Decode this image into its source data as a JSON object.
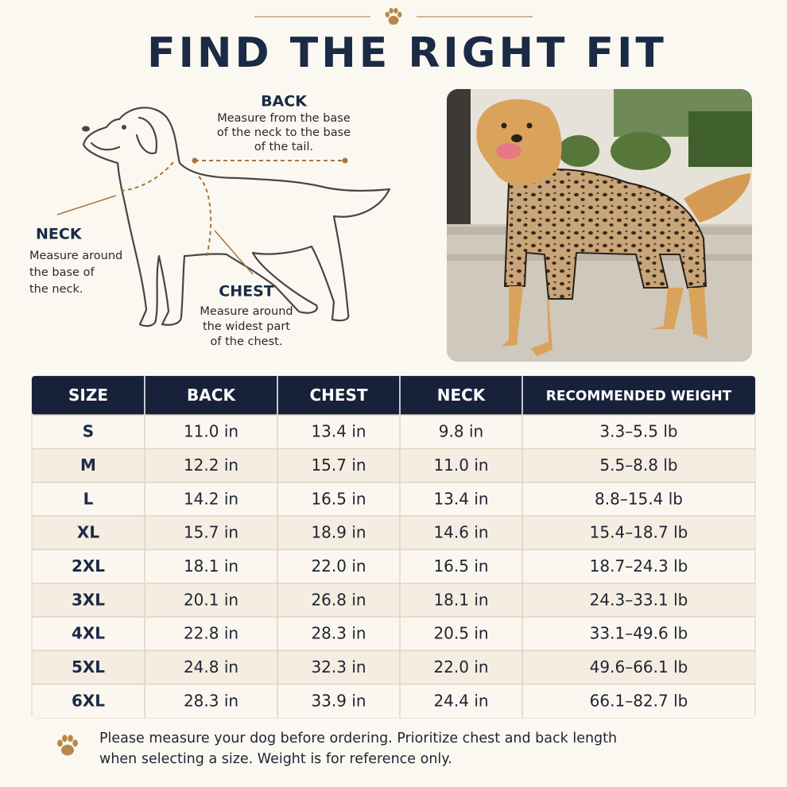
{
  "header": {
    "title": "FIND THE RIGHT FIT"
  },
  "diagram": {
    "back": {
      "label": "BACK",
      "description": [
        "Measure from the base",
        "of the neck to the base",
        "of the tail."
      ]
    },
    "neck": {
      "label": "NECK",
      "description": [
        "Measure around",
        "the base of",
        "the neck."
      ]
    },
    "chest": {
      "label": "CHEST",
      "description": [
        "Measure around",
        "the widest part",
        "of the chest."
      ]
    }
  },
  "table": {
    "columns": [
      "SIZE",
      "BACK",
      "CHEST",
      "NECK",
      "RECOMMENDED WEIGHT"
    ],
    "rows": [
      [
        "S",
        "11.0 in",
        "13.4 in",
        "9.8 in",
        "3.3–5.5 lb"
      ],
      [
        "M",
        "12.2 in",
        "15.7 in",
        "11.0 in",
        "5.5–8.8 lb"
      ],
      [
        "L",
        "14.2 in",
        "16.5 in",
        "13.4 in",
        "8.8–15.4 lb"
      ],
      [
        "XL",
        "15.7 in",
        "18.9 in",
        "14.6 in",
        "15.4–18.7 lb"
      ],
      [
        "2XL",
        "18.1 in",
        "22.0 in",
        "16.5 in",
        "18.7–24.3 lb"
      ],
      [
        "3XL",
        "20.1 in",
        "26.8 in",
        "18.1 in",
        "24.3–33.1 lb"
      ],
      [
        "4XL",
        "22.8 in",
        "28.3 in",
        "20.5 in",
        "33.1–49.6 lb"
      ],
      [
        "5XL",
        "24.8 in",
        "32.3 in",
        "22.0 in",
        "49.6–66.1 lb"
      ],
      [
        "6XL",
        "28.3 in",
        "33.9 in",
        "24.4 in",
        "66.1–82.7 lb"
      ]
    ]
  },
  "note": [
    "Please measure your dog before ordering. Prioritize chest and back length",
    "when selecting a size. Weight is for reference only."
  ]
}
